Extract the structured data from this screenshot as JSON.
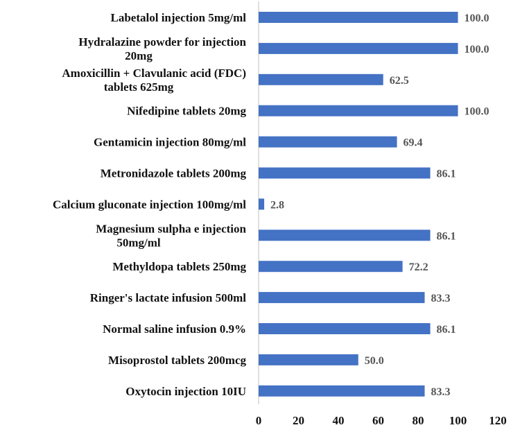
{
  "chart_data": {
    "type": "bar",
    "orientation": "horizontal",
    "categories": [
      [
        "Labetalol injection 5mg/ml"
      ],
      [
        "Hydralazine powder for injection",
        "20mg"
      ],
      [
        "Amoxicillin + Clavulanic acid (FDC)",
        "tablets 625mg"
      ],
      [
        "Nifedipine tablets 20mg"
      ],
      [
        "Gentamicin injection 80mg/ml"
      ],
      [
        "Metronidazole tablets 200mg"
      ],
      [
        "Calcium gluconate injection 100mg/ml"
      ],
      [
        "Magnesium sulpha e injection",
        "50mg/ml"
      ],
      [
        "Methyldopa tablets 250mg"
      ],
      [
        "Ringer's lactate infusion 500ml"
      ],
      [
        "Normal saline infusion 0.9%"
      ],
      [
        "Misoprostol tablets 200mcg"
      ],
      [
        "Oxytocin injection 10IU"
      ]
    ],
    "values": [
      100.0,
      100.0,
      62.5,
      100.0,
      69.4,
      86.1,
      2.8,
      86.1,
      72.2,
      83.3,
      86.1,
      50.0,
      83.3
    ],
    "value_labels": [
      "100.0",
      "100.0",
      "62.5",
      "100.0",
      "69.4",
      "86.1",
      "2.8",
      "86.1",
      "72.2",
      "83.3",
      "86.1",
      "50.0",
      "83.3"
    ],
    "xlim": [
      0,
      120
    ],
    "x_ticks": [
      0,
      20,
      40,
      60,
      80,
      100,
      120
    ],
    "title": "",
    "xlabel": "",
    "ylabel": "",
    "grid": false,
    "colors": {
      "bar": "#4472c4",
      "axis": "#bfbfbf",
      "value_label": "#555555",
      "text": "#111111"
    }
  }
}
